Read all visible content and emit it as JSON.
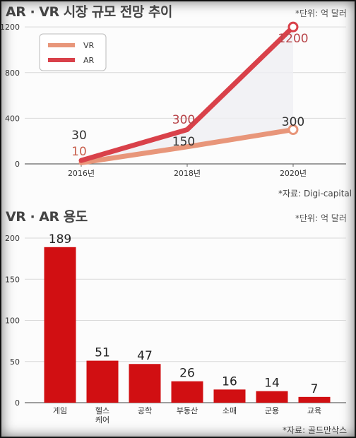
{
  "chart_data": [
    {
      "type": "line",
      "title": "AR · VR 시장 규모 전망 추이",
      "unit_note": "*단위: 억 달러",
      "source": "*자료: Digi-capital",
      "x": [
        "2016년",
        "2018년",
        "2020년"
      ],
      "ylim": [
        0,
        1300
      ],
      "yticks": [
        0,
        400,
        800,
        1200
      ],
      "series": [
        {
          "name": "VR",
          "values": [
            10,
            150,
            300
          ],
          "color": "#e8967a"
        },
        {
          "name": "AR",
          "values": [
            30,
            300,
            1200
          ],
          "color": "#d9414a"
        }
      ],
      "legend_position": "top-left"
    },
    {
      "type": "bar",
      "title": "VR · AR 용도",
      "unit_note": "*단위: 억 달러",
      "source": "*자료: 골드만삭스",
      "categories": [
        "게임",
        "헬스\n케어",
        "공학",
        "부동산",
        "소매",
        "군용",
        "교육"
      ],
      "values": [
        189,
        51,
        47,
        26,
        16,
        14,
        7
      ],
      "ylim": [
        0,
        200
      ],
      "yticks": [
        0,
        50,
        100,
        150,
        200
      ],
      "color": "#d10f12"
    }
  ]
}
